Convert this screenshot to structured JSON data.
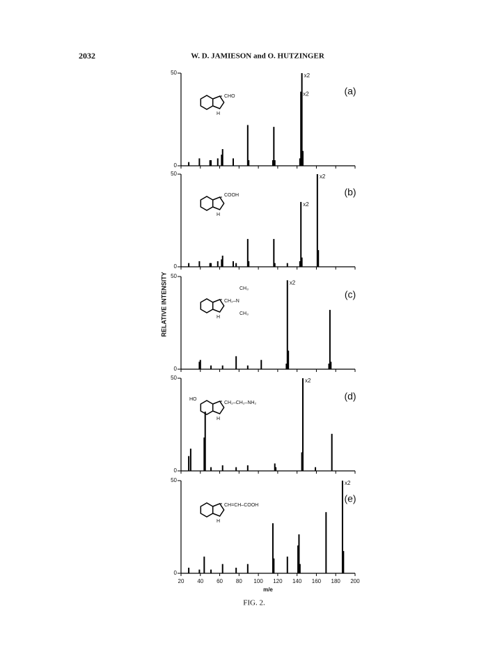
{
  "page_number": "2032",
  "running_head": "W. D. JAMIESON and O. HUTZINGER",
  "caption": "FIG. 2.",
  "chart_data": [
    {
      "type": "bar",
      "panel_label": "(a)",
      "structure_labels": [
        "CHO",
        "H"
      ],
      "x": [
        28,
        39,
        50,
        51,
        58,
        62,
        63,
        74,
        89,
        90,
        115,
        116,
        117,
        143,
        144,
        145,
        146
      ],
      "values": [
        2,
        4,
        3,
        3,
        4,
        6,
        9,
        4,
        22,
        3,
        3,
        21,
        3,
        4,
        40,
        50,
        8
      ],
      "annotations": [
        {
          "text": "x2",
          "x": 145,
          "y": 50
        },
        {
          "text": "x2",
          "x": 144,
          "y": 40
        }
      ],
      "xlim": [
        20,
        200
      ],
      "ylim": [
        0,
        50
      ],
      "yticks": [
        0,
        50
      ],
      "color": "#000000"
    },
    {
      "type": "bar",
      "panel_label": "(b)",
      "structure_labels": [
        "COOH",
        "H"
      ],
      "x": [
        28,
        39,
        50,
        51,
        58,
        62,
        63,
        74,
        77,
        89,
        90,
        116,
        117,
        130,
        143,
        144,
        145,
        161,
        162
      ],
      "values": [
        2,
        3,
        2,
        2,
        3,
        4,
        6,
        3,
        2,
        15,
        3,
        15,
        2,
        2,
        3,
        35,
        5,
        50,
        9
      ],
      "annotations": [
        {
          "text": "x2",
          "x": 161,
          "y": 50
        },
        {
          "text": "x2",
          "x": 144,
          "y": 35
        }
      ],
      "xlim": [
        20,
        200
      ],
      "ylim": [
        0,
        50
      ],
      "yticks": [
        0,
        50
      ],
      "color": "#000000"
    },
    {
      "type": "bar",
      "panel_label": "(c)",
      "structure_labels": [
        "CH₂–N",
        "CH₃",
        "CH₃",
        "H"
      ],
      "ylabel": "RELATIVE INTENSITY",
      "x": [
        39,
        40,
        51,
        63,
        77,
        89,
        103,
        129,
        130,
        131,
        173,
        174,
        175
      ],
      "values": [
        4,
        5,
        2,
        2,
        7,
        2,
        5,
        3,
        48,
        10,
        3,
        32,
        4
      ],
      "annotations": [
        {
          "text": "x2",
          "x": 130,
          "y": 48
        }
      ],
      "xlim": [
        20,
        200
      ],
      "ylim": [
        0,
        50
      ],
      "yticks": [
        0,
        50
      ],
      "color": "#000000"
    },
    {
      "type": "bar",
      "panel_label": "(d)",
      "structure_labels": [
        "HO",
        "CH₂–CH₂–NH₂",
        "H"
      ],
      "x": [
        28,
        30,
        44,
        45,
        51,
        63,
        77,
        89,
        117,
        118,
        145,
        146,
        159,
        176
      ],
      "values": [
        8,
        12,
        18,
        32,
        2,
        3,
        2,
        3,
        4,
        2,
        10,
        50,
        2,
        20
      ],
      "annotations": [
        {
          "text": "x2",
          "x": 146,
          "y": 50
        }
      ],
      "xlim": [
        20,
        200
      ],
      "ylim": [
        0,
        50
      ],
      "yticks": [
        0,
        50
      ],
      "color": "#000000"
    },
    {
      "type": "bar",
      "panel_label": "(e)",
      "structure_labels": [
        "CH=CH–COOH",
        "H"
      ],
      "xlabel": "m/e",
      "x": [
        28,
        39,
        44,
        51,
        63,
        77,
        89,
        115,
        116,
        130,
        141,
        142,
        143,
        170,
        187,
        188
      ],
      "values": [
        3,
        2,
        9,
        2,
        5,
        3,
        5,
        27,
        8,
        9,
        15,
        21,
        5,
        33,
        50,
        12
      ],
      "annotations": [
        {
          "text": "x2",
          "x": 187,
          "y": 50
        }
      ],
      "xlim": [
        20,
        200
      ],
      "ylim": [
        0,
        50
      ],
      "yticks": [
        0,
        50
      ],
      "xticks": [
        20,
        40,
        60,
        80,
        100,
        120,
        140,
        160,
        180,
        200
      ],
      "color": "#000000"
    }
  ]
}
